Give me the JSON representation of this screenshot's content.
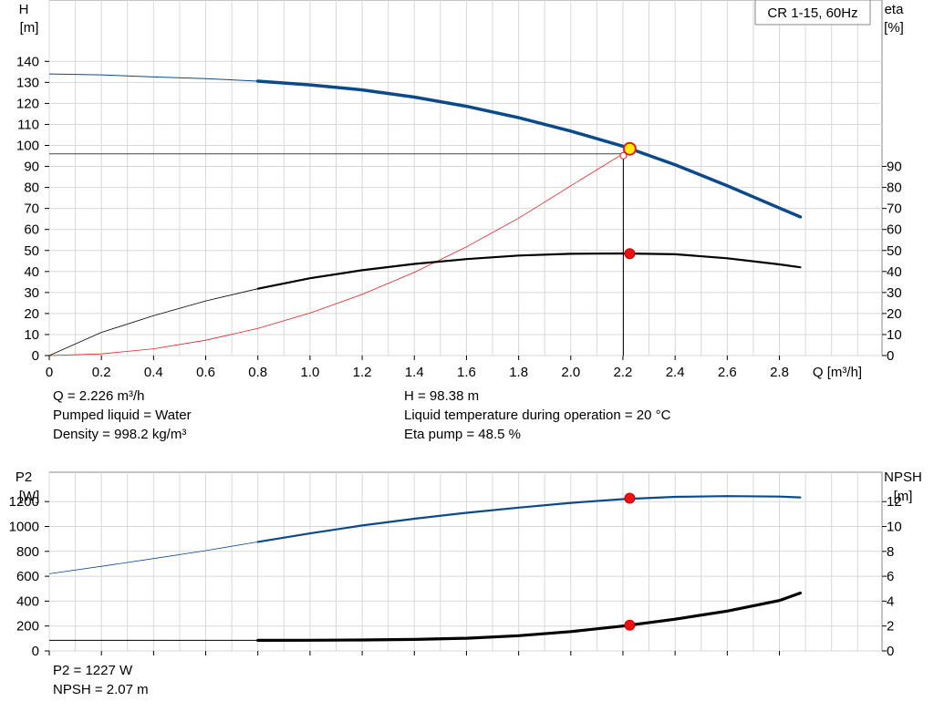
{
  "title_box": "CR 1-15, 60Hz",
  "chart_data": [
    {
      "type": "line",
      "name": "pump-curves",
      "xlabel": "Q [m³/h]",
      "xlim": [
        0,
        3.2
      ],
      "x_ticks": [
        0,
        0.2,
        0.4,
        0.6,
        0.8,
        1.0,
        1.2,
        1.4,
        1.6,
        1.8,
        2.0,
        2.2,
        2.4,
        2.6,
        2.8
      ],
      "x_tick_labels": [
        "0",
        "0.2",
        "0.4",
        "0.6",
        "0.8",
        "1.0",
        "1.2",
        "1.4",
        "1.6",
        "1.8",
        "2.0",
        "2.2",
        "2.4",
        "2.6",
        "2.8"
      ],
      "y_left": {
        "label_top": "H",
        "label_unit": "[m]",
        "range": [
          0,
          160
        ],
        "ticks": [
          0,
          10,
          20,
          30,
          40,
          50,
          60,
          70,
          80,
          90,
          100,
          110,
          120,
          130,
          140
        ]
      },
      "y_right": {
        "label_top": "eta",
        "label_unit": "[%]",
        "range": [
          0,
          160
        ],
        "ticks": [
          0,
          10,
          20,
          30,
          40,
          50,
          60,
          70,
          80,
          90
        ]
      },
      "grid": true,
      "series": [
        {
          "key": "H",
          "axis": "left",
          "color": "#0b4a8a",
          "x": [
            0,
            0.2,
            0.4,
            0.6,
            0.8,
            1.0,
            1.2,
            1.4,
            1.6,
            1.8,
            2.0,
            2.2,
            2.4,
            2.6,
            2.8,
            2.88
          ],
          "y": [
            134,
            133.6,
            132.6,
            131.8,
            130.6,
            128.8,
            126.4,
            123.0,
            118.6,
            113.2,
            106.8,
            99.6,
            90.8,
            80.8,
            70.2,
            66
          ]
        },
        {
          "key": "eta",
          "axis": "right",
          "color": "#000000",
          "x": [
            0,
            0.2,
            0.4,
            0.6,
            0.8,
            1.0,
            1.2,
            1.4,
            1.6,
            1.8,
            2.0,
            2.2,
            2.4,
            2.6,
            2.8,
            2.88
          ],
          "y": [
            0,
            11,
            19,
            26,
            31.8,
            36.8,
            40.6,
            43.6,
            45.9,
            47.6,
            48.4,
            48.6,
            48.2,
            46.3,
            43.4,
            42
          ]
        },
        {
          "key": "system",
          "axis": "left",
          "color": "#e02020",
          "x": [
            0,
            0.2,
            0.4,
            0.6,
            0.8,
            1.0,
            1.2,
            1.4,
            1.6,
            1.8,
            2.0,
            2.2
          ],
          "y": [
            0,
            0.8,
            3.2,
            7.3,
            12.9,
            20.2,
            29.1,
            39.6,
            51.7,
            65.4,
            80.8,
            96
          ]
        }
      ],
      "duty_point": {
        "Q": 2.226,
        "H": 98.38,
        "eta": 48.5,
        "ref_line_y": 96
      }
    },
    {
      "type": "line",
      "name": "power-npsh",
      "xlim": [
        0,
        3.2
      ],
      "x_ticks": [
        0,
        0.2,
        0.4,
        0.6,
        0.8,
        1.0,
        1.2,
        1.4,
        1.6,
        1.8,
        2.0,
        2.2,
        2.4,
        2.6,
        2.8
      ],
      "y_left": {
        "label_top": "P2",
        "label_unit": "[W]",
        "range": [
          0,
          1400
        ],
        "ticks": [
          0,
          200,
          400,
          600,
          800,
          1000,
          1200
        ]
      },
      "y_right": {
        "label_top": "NPSH",
        "label_unit": "[m]",
        "range": [
          0,
          14
        ],
        "ticks": [
          0,
          2,
          4,
          6,
          8,
          10,
          12
        ]
      },
      "grid": true,
      "series": [
        {
          "key": "P2",
          "axis": "left",
          "color": "#0b4a8a",
          "x": [
            0,
            0.2,
            0.4,
            0.6,
            0.8,
            1.0,
            1.2,
            1.4,
            1.6,
            1.8,
            2.0,
            2.2,
            2.4,
            2.6,
            2.8,
            2.88
          ],
          "y": [
            620,
            680,
            742,
            806,
            876,
            944,
            1008,
            1062,
            1110,
            1152,
            1190,
            1220,
            1238,
            1244,
            1240,
            1234
          ]
        },
        {
          "key": "NPSH",
          "axis": "right",
          "color": "#000000",
          "x": [
            0,
            0.2,
            0.4,
            0.6,
            0.8,
            1.0,
            1.2,
            1.4,
            1.6,
            1.8,
            2.0,
            2.2,
            2.4,
            2.6,
            2.8,
            2.88
          ],
          "y": [
            0.85,
            0.85,
            0.85,
            0.85,
            0.85,
            0.86,
            0.88,
            0.92,
            1.02,
            1.22,
            1.55,
            2.0,
            2.55,
            3.2,
            4.05,
            4.65
          ]
        }
      ],
      "duty_point": {
        "Q": 2.226,
        "P2": 1227,
        "NPSH": 2.07
      }
    }
  ],
  "info_top_left": [
    "Q = 2.226 m³/h",
    "Pumped liquid = Water",
    "Density = 998.2 kg/m³"
  ],
  "info_top_right": [
    "H = 98.38 m",
    "Liquid temperature during operation = 20 °C",
    "Eta pump = 48.5 %"
  ],
  "info_bottom": [
    "P2 = 1227 W",
    "NPSH = 2.07 m"
  ]
}
